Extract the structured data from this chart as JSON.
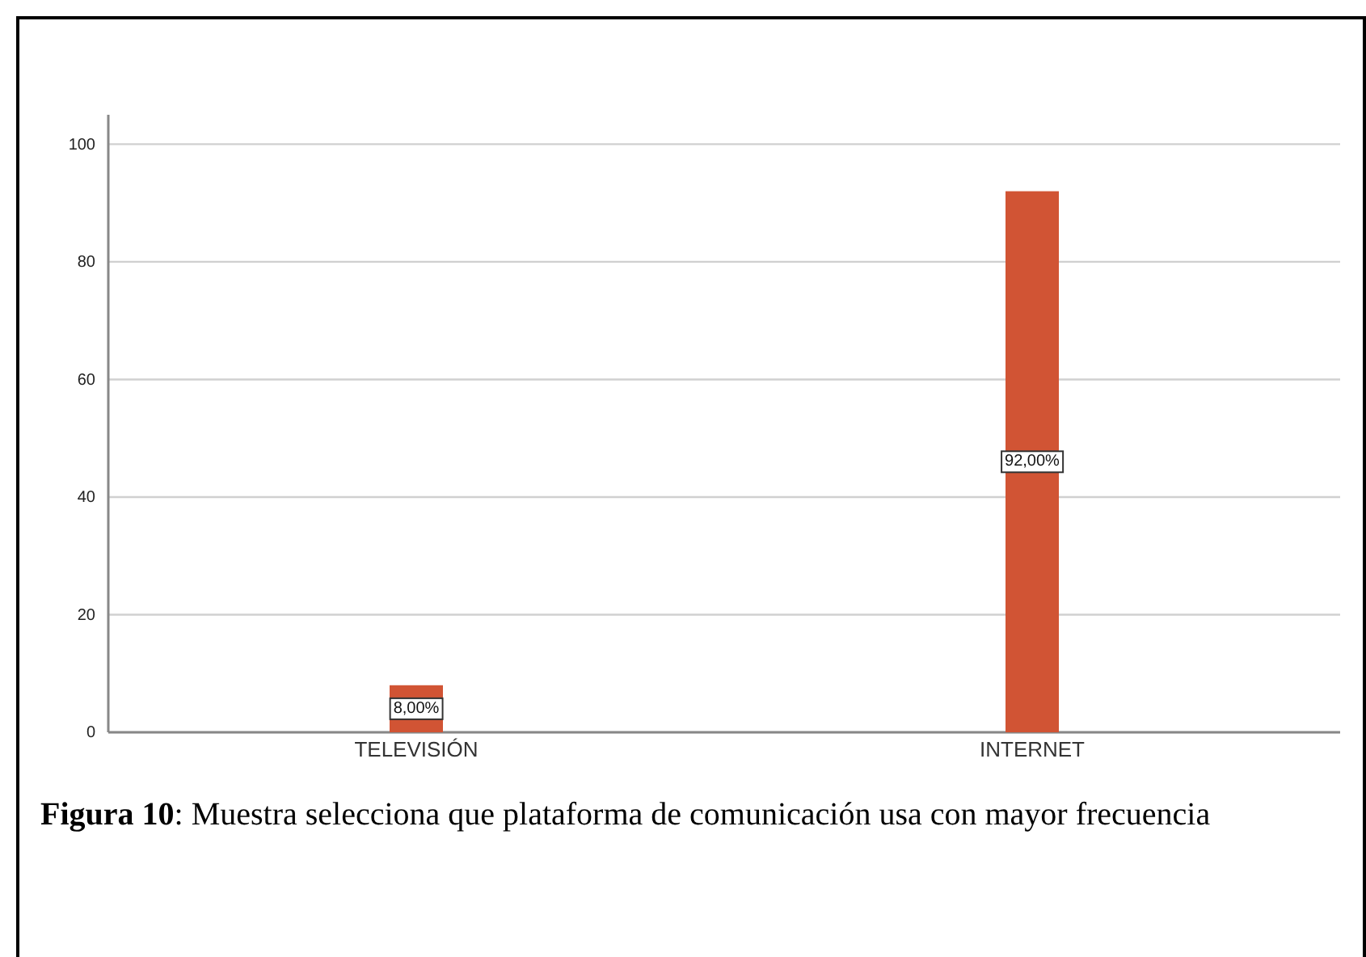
{
  "chart_data": {
    "type": "bar",
    "categories": [
      "TELEVISIÓN",
      "INTERNET"
    ],
    "values": [
      8,
      92
    ],
    "color": "#d15434",
    "value_labels": [
      "8,00%",
      "92,00%"
    ],
    "ylim": [
      0,
      105
    ],
    "yticks": [
      0,
      20,
      40,
      60,
      80,
      100
    ],
    "grid": "y",
    "annotations": [
      "Figura 10: Muestra selecciona que plataforma de comunicación usa con mayor frecuencia"
    ]
  }
}
